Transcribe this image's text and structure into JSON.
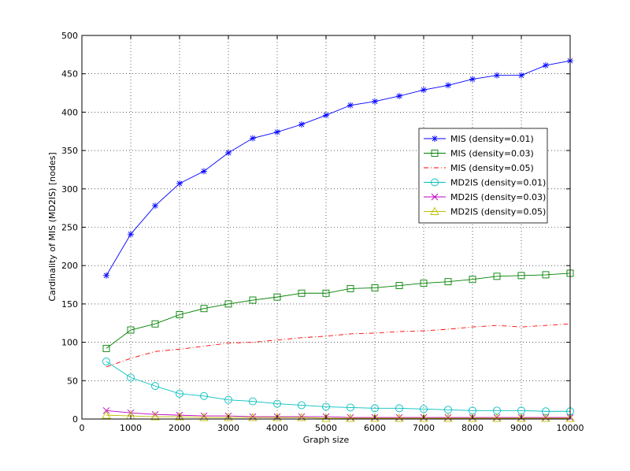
{
  "chart_data": {
    "type": "line",
    "xlabel": "Graph size",
    "ylabel": "Cardinality of MIS (MD2IS) [nodes]",
    "xlim": [
      0,
      10000
    ],
    "ylim": [
      0,
      500
    ],
    "x_ticks": [
      "0",
      "1000",
      "2000",
      "3000",
      "4000",
      "5000",
      "6000",
      "7000",
      "8000",
      "9000",
      "10000"
    ],
    "y_ticks": [
      "0",
      "50",
      "100",
      "150",
      "200",
      "250",
      "300",
      "350",
      "400",
      "450",
      "500"
    ],
    "grid": true,
    "legend_position": "right",
    "x": [
      500,
      1000,
      1500,
      2000,
      2500,
      3000,
      3500,
      4000,
      4500,
      5000,
      5500,
      6000,
      6500,
      7000,
      7500,
      8000,
      8500,
      9000,
      9500,
      10000
    ],
    "series": [
      {
        "name": "MIS (density=0.01)",
        "color": "#0000ff",
        "marker": "asterisk",
        "dash": "solid",
        "values": [
          187,
          241,
          278,
          307,
          323,
          347,
          366,
          374,
          384,
          396,
          409,
          414,
          421,
          429,
          435,
          443,
          448,
          448,
          461,
          467
        ]
      },
      {
        "name": "MIS (density=0.03)",
        "color": "#008000",
        "marker": "square",
        "dash": "solid",
        "values": [
          92,
          116,
          124,
          136,
          144,
          150,
          155,
          159,
          164,
          164,
          170,
          171,
          174,
          177,
          179,
          182,
          186,
          187,
          188,
          190
        ]
      },
      {
        "name": "MIS (density=0.05)",
        "color": "#ff0000",
        "marker": "none",
        "dash": "dashdot",
        "values": [
          68,
          79,
          88,
          91,
          95,
          99,
          100,
          103,
          106,
          108,
          111,
          112,
          114,
          115,
          117,
          120,
          122,
          120,
          122,
          124
        ]
      },
      {
        "name": "MD2IS (density=0.01)",
        "color": "#00bfbf",
        "marker": "circle",
        "dash": "solid",
        "values": [
          75,
          54,
          43,
          33,
          30,
          25,
          23,
          20,
          18,
          16,
          15,
          14,
          14,
          13,
          12,
          11,
          11,
          11,
          10,
          10
        ]
      },
      {
        "name": "MD2IS (density=0.03)",
        "color": "#bf00bf",
        "marker": "x",
        "dash": "solid",
        "values": [
          11,
          8,
          6,
          5,
          4,
          4,
          3,
          3,
          3,
          3,
          2,
          2,
          2,
          2,
          2,
          2,
          2,
          2,
          2,
          2
        ]
      },
      {
        "name": "MD2IS (density=0.05)",
        "color": "#bfbf00",
        "marker": "triangle",
        "dash": "solid",
        "values": [
          5,
          4,
          3,
          3,
          2,
          2,
          2,
          2,
          2,
          1,
          1,
          1,
          1,
          1,
          1,
          1,
          1,
          1,
          1,
          1
        ]
      }
    ]
  }
}
